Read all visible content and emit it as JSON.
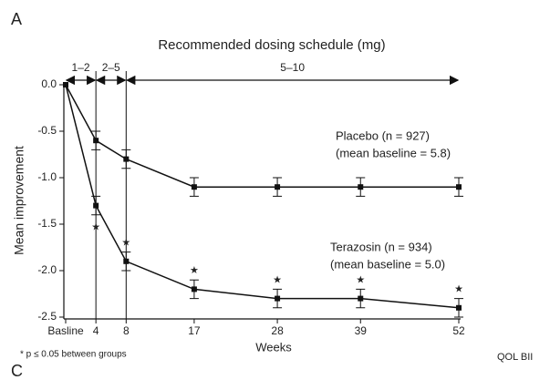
{
  "panel_label": "A",
  "next_panel_label": "C",
  "side_label": "QOL BII",
  "chart_data": {
    "type": "line",
    "title": "Recommended dosing schedule (mg)",
    "xlabel": "Weeks",
    "ylabel": "Mean improvement",
    "footnote": "* p ≤ 0.05 between groups",
    "x": [
      0,
      4,
      8,
      17,
      28,
      39,
      52
    ],
    "xlim": [
      0,
      52
    ],
    "xticks": [
      {
        "value": 0,
        "label": "Basline"
      },
      4,
      8,
      17,
      28,
      39,
      52
    ],
    "ylim": [
      -2.5,
      0
    ],
    "yticks": [
      {
        "value": 0,
        "label": "0.0"
      },
      -0.5,
      {
        "value": -1,
        "label": "-1.0"
      },
      -1.5,
      {
        "value": -2,
        "label": "-2.0"
      },
      -2.5
    ],
    "dosing": [
      {
        "label": "1–2",
        "from": 0,
        "to": 4
      },
      {
        "label": "2–5",
        "from": 4,
        "to": 8
      },
      {
        "label": "5–10",
        "from": 8,
        "to": 52
      }
    ],
    "significance_marker": "★",
    "series": [
      {
        "name": "Placebo (n = 927)",
        "note": "(mean baseline = 5.8)",
        "color": "#111111",
        "values": [
          0,
          -0.6,
          -0.8,
          -1.1,
          -1.1,
          -1.1,
          -1.1
        ],
        "errors": [
          0,
          0.1,
          0.1,
          0.1,
          0.1,
          0.1,
          0.1
        ]
      },
      {
        "name": "Terazosin (n = 934)",
        "note": "(mean baseline = 5.0)",
        "color": "#111111",
        "values": [
          0,
          -1.3,
          -1.9,
          -2.2,
          -2.3,
          -2.3,
          -2.4
        ],
        "errors": [
          0,
          0.1,
          0.1,
          0.1,
          0.1,
          0.1,
          0.1
        ]
      }
    ]
  }
}
